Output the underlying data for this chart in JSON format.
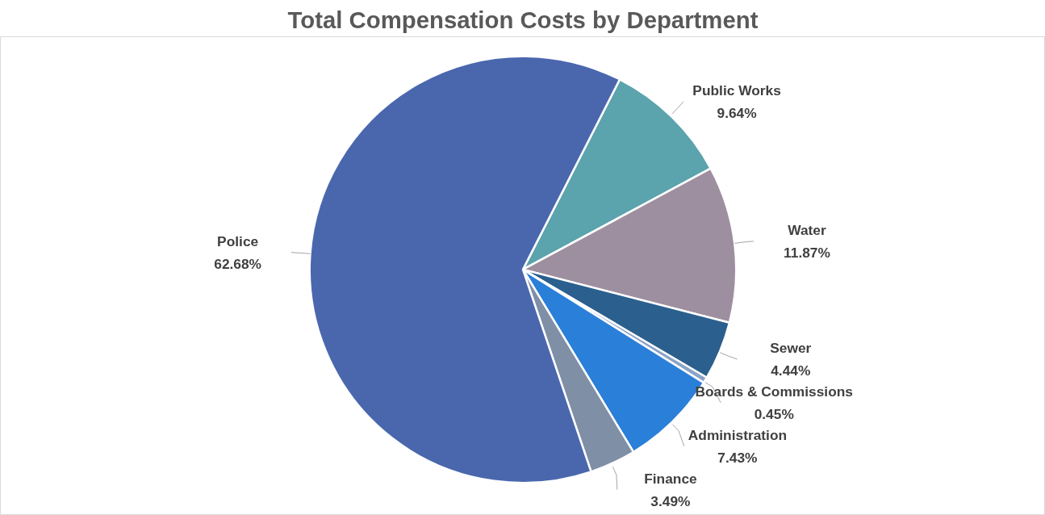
{
  "chart_data": {
    "type": "pie",
    "title": "Total Compensation Costs by Department",
    "categories": [
      "Public Works",
      "Water",
      "Sewer",
      "Boards & Commissions",
      "Administration",
      "Finance",
      "Police"
    ],
    "values": [
      9.64,
      11.87,
      4.44,
      0.45,
      7.43,
      3.49,
      62.68
    ],
    "value_labels": [
      "9.64%",
      "11.87%",
      "4.44%",
      "0.45%",
      "7.43%",
      "3.49%",
      "62.68%"
    ],
    "colors": [
      "#5ba3ad",
      "#9e8fa0",
      "#2b5f8e",
      "#8aa3c8",
      "#2a7fd8",
      "#7f8fa6",
      "#4a67ae"
    ]
  }
}
